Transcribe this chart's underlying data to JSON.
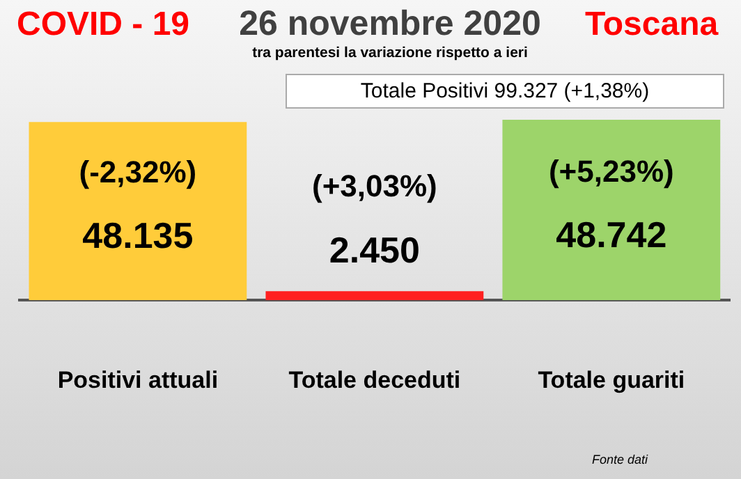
{
  "chart_data": {
    "type": "bar",
    "title": "26 novembre 2020",
    "subtitle": "tra parentesi la variazione rispetto a ieri",
    "categories": [
      "Positivi attuali",
      "Totale deceduti",
      "Totale guariti"
    ],
    "values": [
      48135,
      2450,
      48742
    ],
    "colors": [
      "#ffcc3a",
      "#ff2020",
      "#9dd46a"
    ],
    "value_labels": [
      "48.135",
      "2.450",
      "48.742"
    ],
    "annotations": [
      "COVID - 19",
      "Toscana",
      "Totale Positivi   99.327 (+1,38%)",
      "Fonte dati",
      "(-2,32%)",
      "(+3,03%)",
      "(+5,23%)"
    ],
    "legend": false
  }
}
